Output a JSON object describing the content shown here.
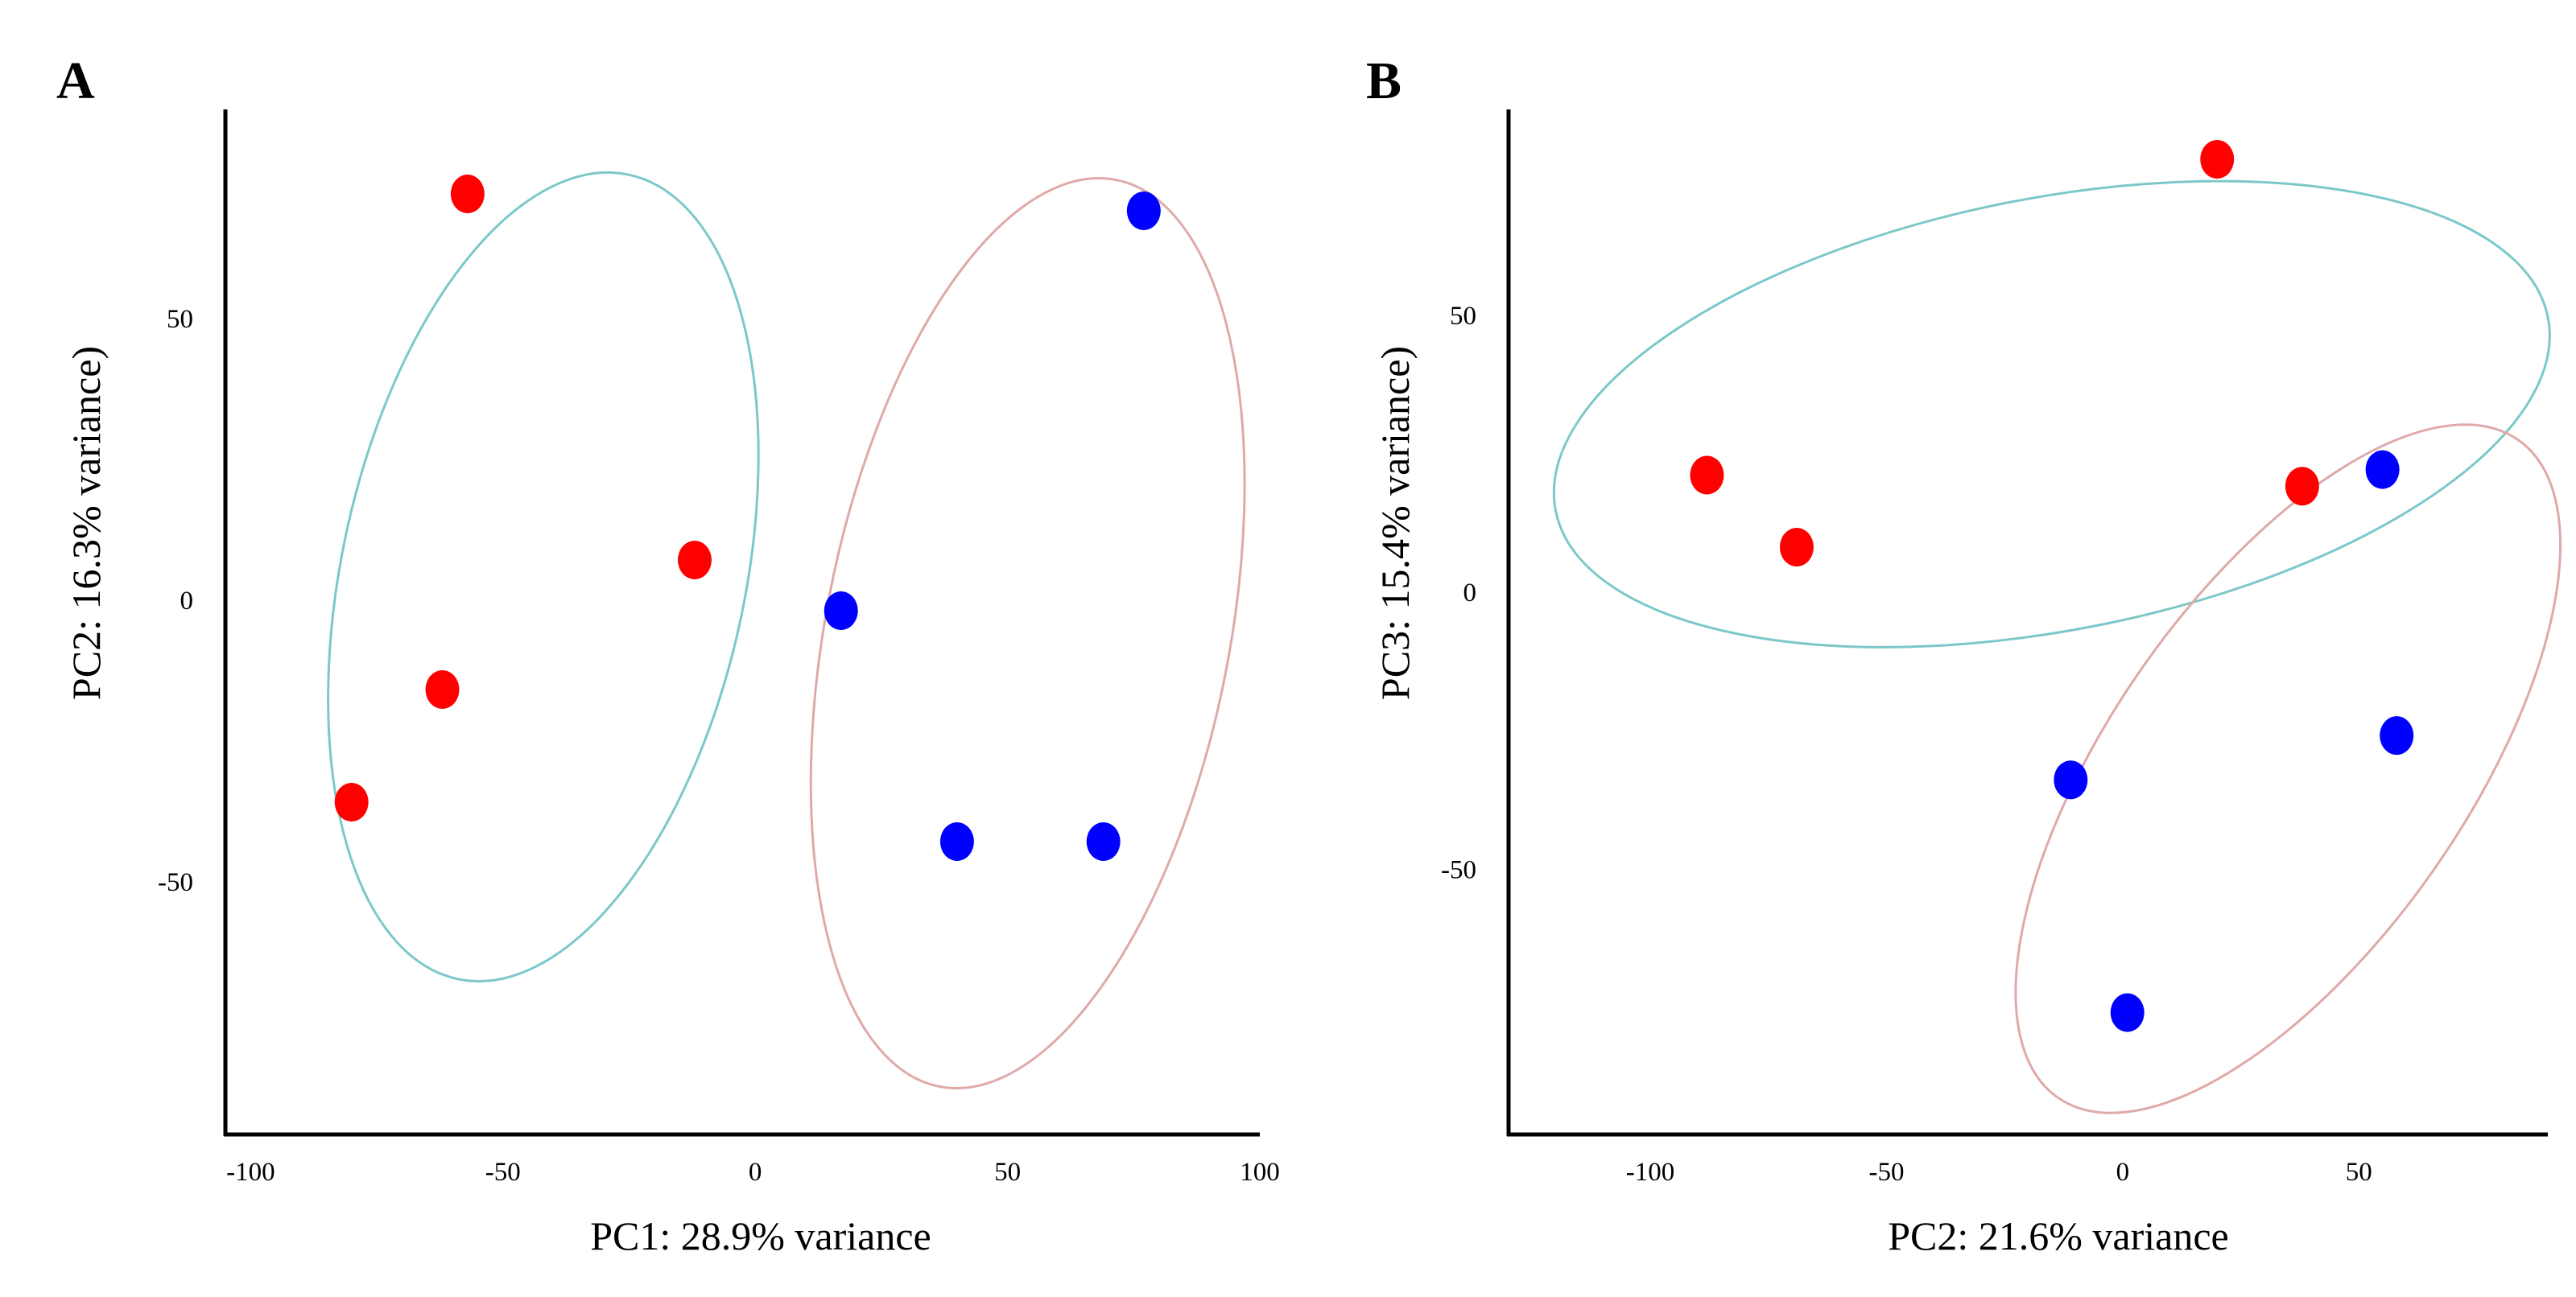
{
  "chart_data": [
    {
      "type": "scatter",
      "panel_label": "A",
      "xlabel": "PC1: 28.9% variance",
      "ylabel": "PC2: 16.3% variance)",
      "xlim": [
        -105,
        100
      ],
      "ylim": [
        -95,
        87
      ],
      "xticks": [
        -100,
        -50,
        0,
        50,
        100
      ],
      "xtick_labels": [
        "-100",
        "-50",
        "0",
        "50",
        "100"
      ],
      "yticks": [
        50,
        0,
        -50
      ],
      "ytick_labels": [
        "50",
        "0",
        "-50"
      ],
      "colors": {
        "red_group": "#ff0000",
        "blue_group": "#0000ff",
        "teal_ellipse": "#7cc8c8",
        "pink_ellipse": "#e0a9a9"
      },
      "series": [
        {
          "name": "red",
          "color": "#ff0000",
          "points": [
            {
              "x": -57,
              "y": 72
            },
            {
              "x": -12,
              "y": 7
            },
            {
              "x": -62,
              "y": -16
            },
            {
              "x": -80,
              "y": -36
            }
          ]
        },
        {
          "name": "blue",
          "color": "#0000ff",
          "points": [
            {
              "x": 77,
              "y": 69
            },
            {
              "x": 17,
              "y": -2
            },
            {
              "x": 40,
              "y": -43
            },
            {
              "x": 69,
              "y": -43
            }
          ]
        }
      ],
      "ellipses": [
        {
          "name": "teal-ellipse",
          "color": "#7cc8c8",
          "cx": -42,
          "cy": 4,
          "rx": 40,
          "ry": 73,
          "angle_deg": 12
        },
        {
          "name": "pink-ellipse",
          "color": "#e0a9a9",
          "cx": 54,
          "cy": -6,
          "rx": 40,
          "ry": 82,
          "angle_deg": 11
        }
      ]
    },
    {
      "type": "scatter",
      "panel_label": "B",
      "xlabel": "PC2: 21.6% variance",
      "ylabel": "PC3: 15.4% variance)",
      "xlim": [
        -130,
        90
      ],
      "ylim": [
        -98,
        87
      ],
      "xticks": [
        -100,
        -50,
        0,
        50
      ],
      "xtick_labels": [
        "-100",
        "-50",
        "0",
        "50"
      ],
      "yticks": [
        50,
        0,
        -50
      ],
      "ytick_labels": [
        "50",
        "0",
        "-50"
      ],
      "colors": {
        "red_group": "#ff0000",
        "blue_group": "#0000ff",
        "teal_ellipse": "#7cc8c8",
        "pink_ellipse": "#e0a9a9"
      },
      "series": [
        {
          "name": "red",
          "color": "#ff0000",
          "points": [
            {
              "x": 20,
              "y": 78
            },
            {
              "x": -88,
              "y": 21
            },
            {
              "x": -69,
              "y": 8
            },
            {
              "x": 38,
              "y": 19
            }
          ]
        },
        {
          "name": "blue",
          "color": "#0000ff",
          "points": [
            {
              "x": 55,
              "y": 22
            },
            {
              "x": -11,
              "y": -34
            },
            {
              "x": 58,
              "y": -26
            },
            {
              "x": 1,
              "y": -76
            }
          ]
        }
      ],
      "ellipses": [
        {
          "name": "teal-ellipse",
          "color": "#7cc8c8",
          "cx": -15,
          "cy": 32,
          "rx": 107,
          "ry": 39,
          "angle_deg": -11
        },
        {
          "name": "pink-ellipse",
          "color": "#e0a9a9",
          "cx": 35,
          "cy": -32,
          "rx": 85,
          "ry": 32,
          "angle_deg": -55
        }
      ]
    }
  ]
}
